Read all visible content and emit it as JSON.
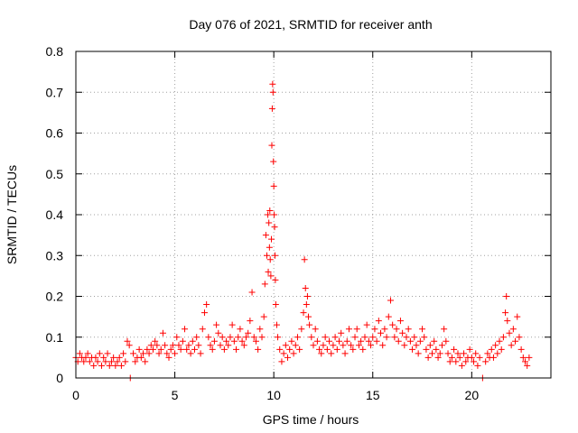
{
  "chart_data": {
    "type": "scatter",
    "title": "Day 076 of 2021, SRMTID for receiver anth",
    "xlabel": "GPS time / hours",
    "ylabel": "SRMTID / TECUs",
    "xlim": [
      0,
      24
    ],
    "ylim": [
      0,
      0.8
    ],
    "xticks": [
      0,
      5,
      10,
      15,
      20
    ],
    "xtick_labels": [
      "0",
      "5",
      "10",
      "15",
      "20"
    ],
    "yticks": [
      0,
      0.1,
      0.2,
      0.3,
      0.4,
      0.5,
      0.6,
      0.7,
      0.8
    ],
    "ytick_labels": [
      "0",
      "0.1",
      "0.2",
      "0.3",
      "0.4",
      "0.5",
      "0.6",
      "0.7",
      "0.8"
    ],
    "grid": true,
    "marker": "+",
    "colors": {
      "series": "#ff0000",
      "grid": "#a0a0a0",
      "axes": "#000000"
    },
    "series": [
      {
        "name": "SRMTID",
        "points": [
          [
            0.0,
            0.05
          ],
          [
            0.1,
            0.04
          ],
          [
            0.2,
            0.06
          ],
          [
            0.3,
            0.05
          ],
          [
            0.4,
            0.04
          ],
          [
            0.5,
            0.05
          ],
          [
            0.6,
            0.06
          ],
          [
            0.7,
            0.04
          ],
          [
            0.8,
            0.05
          ],
          [
            0.9,
            0.03
          ],
          [
            1.0,
            0.05
          ],
          [
            1.1,
            0.04
          ],
          [
            1.2,
            0.06
          ],
          [
            1.3,
            0.03
          ],
          [
            1.4,
            0.05
          ],
          [
            1.5,
            0.04
          ],
          [
            1.6,
            0.06
          ],
          [
            1.7,
            0.03
          ],
          [
            1.8,
            0.04
          ],
          [
            1.9,
            0.05
          ],
          [
            2.0,
            0.03
          ],
          [
            2.1,
            0.04
          ],
          [
            2.2,
            0.05
          ],
          [
            2.3,
            0.03
          ],
          [
            2.4,
            0.06
          ],
          [
            2.5,
            0.04
          ],
          [
            2.6,
            0.09
          ],
          [
            2.7,
            0.08
          ],
          [
            2.75,
            0.0
          ],
          [
            2.9,
            0.06
          ],
          [
            3.0,
            0.04
          ],
          [
            3.1,
            0.05
          ],
          [
            3.2,
            0.07
          ],
          [
            3.3,
            0.05
          ],
          [
            3.4,
            0.06
          ],
          [
            3.5,
            0.04
          ],
          [
            3.6,
            0.07
          ],
          [
            3.7,
            0.06
          ],
          [
            3.8,
            0.08
          ],
          [
            3.9,
            0.07
          ],
          [
            4.0,
            0.09
          ],
          [
            4.1,
            0.08
          ],
          [
            4.2,
            0.06
          ],
          [
            4.3,
            0.07
          ],
          [
            4.4,
            0.11
          ],
          [
            4.5,
            0.08
          ],
          [
            4.6,
            0.06
          ],
          [
            4.7,
            0.05
          ],
          [
            4.8,
            0.07
          ],
          [
            4.9,
            0.08
          ],
          [
            5.0,
            0.06
          ],
          [
            5.1,
            0.1
          ],
          [
            5.2,
            0.08
          ],
          [
            5.3,
            0.07
          ],
          [
            5.4,
            0.09
          ],
          [
            5.5,
            0.12
          ],
          [
            5.6,
            0.07
          ],
          [
            5.7,
            0.08
          ],
          [
            5.8,
            0.06
          ],
          [
            5.9,
            0.09
          ],
          [
            6.0,
            0.07
          ],
          [
            6.1,
            0.1
          ],
          [
            6.2,
            0.08
          ],
          [
            6.3,
            0.06
          ],
          [
            6.4,
            0.12
          ],
          [
            6.5,
            0.16
          ],
          [
            6.6,
            0.18
          ],
          [
            6.7,
            0.1
          ],
          [
            6.8,
            0.08
          ],
          [
            6.9,
            0.07
          ],
          [
            7.0,
            0.09
          ],
          [
            7.1,
            0.13
          ],
          [
            7.2,
            0.11
          ],
          [
            7.3,
            0.08
          ],
          [
            7.4,
            0.1
          ],
          [
            7.5,
            0.07
          ],
          [
            7.6,
            0.09
          ],
          [
            7.7,
            0.08
          ],
          [
            7.8,
            0.1
          ],
          [
            7.9,
            0.13
          ],
          [
            8.0,
            0.09
          ],
          [
            8.1,
            0.07
          ],
          [
            8.2,
            0.1
          ],
          [
            8.3,
            0.12
          ],
          [
            8.4,
            0.09
          ],
          [
            8.5,
            0.08
          ],
          [
            8.6,
            0.1
          ],
          [
            8.7,
            0.11
          ],
          [
            8.8,
            0.14
          ],
          [
            8.9,
            0.21
          ],
          [
            9.0,
            0.1
          ],
          [
            9.1,
            0.09
          ],
          [
            9.2,
            0.07
          ],
          [
            9.3,
            0.12
          ],
          [
            9.4,
            0.1
          ],
          [
            9.5,
            0.15
          ],
          [
            9.55,
            0.23
          ],
          [
            9.6,
            0.35
          ],
          [
            9.65,
            0.3
          ],
          [
            9.7,
            0.4
          ],
          [
            9.72,
            0.26
          ],
          [
            9.75,
            0.38
          ],
          [
            9.78,
            0.32
          ],
          [
            9.8,
            0.41
          ],
          [
            9.82,
            0.29
          ],
          [
            9.85,
            0.25
          ],
          [
            9.88,
            0.34
          ],
          [
            9.9,
            0.57
          ],
          [
            9.92,
            0.66
          ],
          [
            9.94,
            0.72
          ],
          [
            9.96,
            0.7
          ],
          [
            9.98,
            0.53
          ],
          [
            10.0,
            0.47
          ],
          [
            10.02,
            0.4
          ],
          [
            10.04,
            0.37
          ],
          [
            10.06,
            0.3
          ],
          [
            10.08,
            0.24
          ],
          [
            10.1,
            0.18
          ],
          [
            10.15,
            0.13
          ],
          [
            10.2,
            0.1
          ],
          [
            10.3,
            0.07
          ],
          [
            10.4,
            0.04
          ],
          [
            10.5,
            0.06
          ],
          [
            10.6,
            0.08
          ],
          [
            10.7,
            0.05
          ],
          [
            10.8,
            0.07
          ],
          [
            10.9,
            0.09
          ],
          [
            11.0,
            0.06
          ],
          [
            11.1,
            0.08
          ],
          [
            11.2,
            0.1
          ],
          [
            11.3,
            0.07
          ],
          [
            11.4,
            0.12
          ],
          [
            11.5,
            0.16
          ],
          [
            11.55,
            0.29
          ],
          [
            11.6,
            0.22
          ],
          [
            11.65,
            0.18
          ],
          [
            11.7,
            0.2
          ],
          [
            11.75,
            0.15
          ],
          [
            11.8,
            0.13
          ],
          [
            11.9,
            0.1
          ],
          [
            12.0,
            0.08
          ],
          [
            12.1,
            0.12
          ],
          [
            12.2,
            0.09
          ],
          [
            12.3,
            0.07
          ],
          [
            12.4,
            0.06
          ],
          [
            12.5,
            0.08
          ],
          [
            12.6,
            0.1
          ],
          [
            12.7,
            0.07
          ],
          [
            12.8,
            0.09
          ],
          [
            12.9,
            0.06
          ],
          [
            13.0,
            0.08
          ],
          [
            13.1,
            0.1
          ],
          [
            13.2,
            0.07
          ],
          [
            13.3,
            0.09
          ],
          [
            13.4,
            0.11
          ],
          [
            13.5,
            0.08
          ],
          [
            13.6,
            0.06
          ],
          [
            13.7,
            0.09
          ],
          [
            13.8,
            0.12
          ],
          [
            13.9,
            0.08
          ],
          [
            14.0,
            0.07
          ],
          [
            14.1,
            0.1
          ],
          [
            14.2,
            0.12
          ],
          [
            14.3,
            0.08
          ],
          [
            14.4,
            0.09
          ],
          [
            14.5,
            0.07
          ],
          [
            14.6,
            0.1
          ],
          [
            14.7,
            0.13
          ],
          [
            14.8,
            0.09
          ],
          [
            14.9,
            0.08
          ],
          [
            15.0,
            0.1
          ],
          [
            15.1,
            0.12
          ],
          [
            15.2,
            0.09
          ],
          [
            15.3,
            0.14
          ],
          [
            15.4,
            0.11
          ],
          [
            15.5,
            0.08
          ],
          [
            15.6,
            0.12
          ],
          [
            15.7,
            0.1
          ],
          [
            15.8,
            0.15
          ],
          [
            15.9,
            0.19
          ],
          [
            16.0,
            0.13
          ],
          [
            16.1,
            0.1
          ],
          [
            16.2,
            0.12
          ],
          [
            16.3,
            0.09
          ],
          [
            16.4,
            0.14
          ],
          [
            16.5,
            0.11
          ],
          [
            16.6,
            0.08
          ],
          [
            16.7,
            0.1
          ],
          [
            16.8,
            0.12
          ],
          [
            16.9,
            0.09
          ],
          [
            17.0,
            0.07
          ],
          [
            17.1,
            0.1
          ],
          [
            17.2,
            0.08
          ],
          [
            17.3,
            0.06
          ],
          [
            17.4,
            0.09
          ],
          [
            17.5,
            0.12
          ],
          [
            17.6,
            0.1
          ],
          [
            17.7,
            0.07
          ],
          [
            17.8,
            0.05
          ],
          [
            17.9,
            0.08
          ],
          [
            18.0,
            0.06
          ],
          [
            18.1,
            0.09
          ],
          [
            18.2,
            0.07
          ],
          [
            18.3,
            0.05
          ],
          [
            18.4,
            0.06
          ],
          [
            18.5,
            0.08
          ],
          [
            18.6,
            0.12
          ],
          [
            18.7,
            0.09
          ],
          [
            18.8,
            0.06
          ],
          [
            18.9,
            0.04
          ],
          [
            19.0,
            0.05
          ],
          [
            19.1,
            0.07
          ],
          [
            19.2,
            0.04
          ],
          [
            19.3,
            0.06
          ],
          [
            19.4,
            0.05
          ],
          [
            19.5,
            0.03
          ],
          [
            19.6,
            0.06
          ],
          [
            19.7,
            0.04
          ],
          [
            19.8,
            0.05
          ],
          [
            19.9,
            0.07
          ],
          [
            20.0,
            0.05
          ],
          [
            20.1,
            0.04
          ],
          [
            20.2,
            0.06
          ],
          [
            20.3,
            0.03
          ],
          [
            20.4,
            0.05
          ],
          [
            20.55,
            0.0
          ],
          [
            20.7,
            0.04
          ],
          [
            20.8,
            0.06
          ],
          [
            20.9,
            0.05
          ],
          [
            21.0,
            0.07
          ],
          [
            21.1,
            0.05
          ],
          [
            21.2,
            0.08
          ],
          [
            21.3,
            0.06
          ],
          [
            21.4,
            0.09
          ],
          [
            21.5,
            0.07
          ],
          [
            21.6,
            0.1
          ],
          [
            21.7,
            0.16
          ],
          [
            21.75,
            0.2
          ],
          [
            21.8,
            0.14
          ],
          [
            21.9,
            0.11
          ],
          [
            22.0,
            0.08
          ],
          [
            22.1,
            0.12
          ],
          [
            22.2,
            0.09
          ],
          [
            22.3,
            0.15
          ],
          [
            22.4,
            0.1
          ],
          [
            22.5,
            0.07
          ],
          [
            22.6,
            0.05
          ],
          [
            22.7,
            0.04
          ],
          [
            22.8,
            0.03
          ],
          [
            22.9,
            0.05
          ]
        ]
      }
    ]
  }
}
